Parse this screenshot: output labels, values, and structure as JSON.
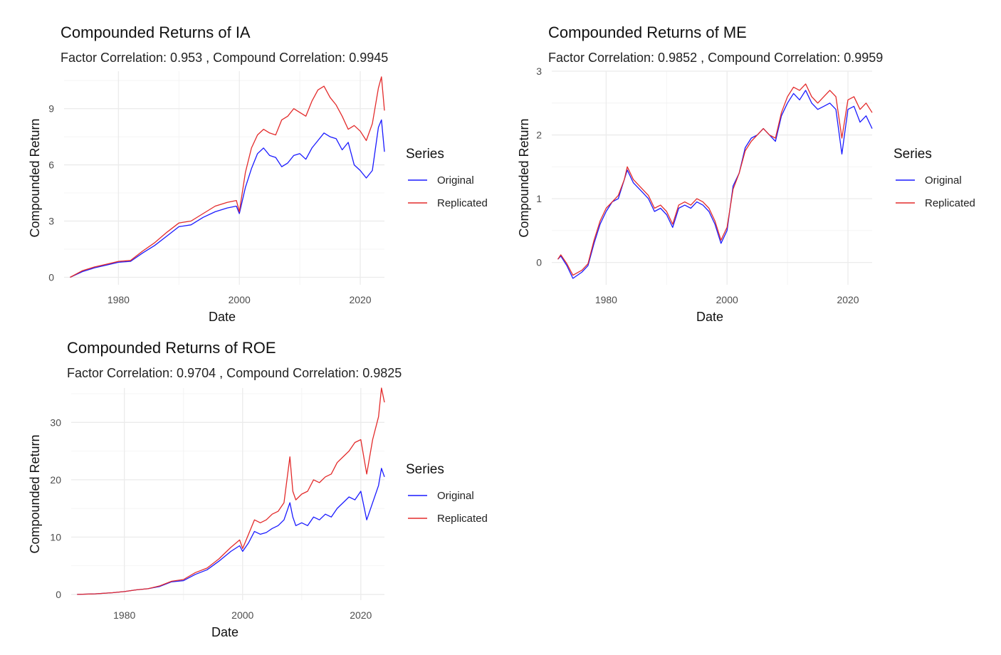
{
  "chart_data": [
    {
      "type": "line",
      "title": "Compounded Returns of IA",
      "subtitle": "Factor Correlation: 0.953 , Compound Correlation: 0.9945",
      "xlabel": "Date",
      "ylabel": "Compounded Return",
      "xlim": [
        1971,
        2024
      ],
      "ylim": [
        -0.4,
        11
      ],
      "xticks": [
        1980,
        2000,
        2020
      ],
      "yticks": [
        0,
        3,
        6,
        9
      ],
      "legend_title": "Series",
      "legend_position": "right",
      "grid": true,
      "series": [
        {
          "name": "Original",
          "color": "#1a1aff",
          "x": [
            1972,
            1974,
            1976,
            1978,
            1980,
            1982,
            1984,
            1986,
            1988,
            1990,
            1992,
            1994,
            1996,
            1998,
            1999.5,
            2000,
            2001,
            2002,
            2003,
            2004,
            2005,
            2006,
            2007,
            2008,
            2009,
            2010,
            2011,
            2012,
            2013,
            2014,
            2015,
            2016,
            2017,
            2018,
            2019,
            2020,
            2021,
            2022,
            2023,
            2023.5,
            2024
          ],
          "y": [
            0,
            0.3,
            0.5,
            0.65,
            0.8,
            0.85,
            1.3,
            1.7,
            2.2,
            2.7,
            2.8,
            3.2,
            3.5,
            3.7,
            3.8,
            3.4,
            4.8,
            5.8,
            6.6,
            6.9,
            6.5,
            6.4,
            5.9,
            6.1,
            6.5,
            6.6,
            6.3,
            6.9,
            7.3,
            7.7,
            7.5,
            7.4,
            6.8,
            7.2,
            6.0,
            5.7,
            5.3,
            5.7,
            8.0,
            8.4,
            6.7
          ]
        },
        {
          "name": "Replicated",
          "color": "#e32b2b",
          "x": [
            1972,
            1974,
            1976,
            1978,
            1980,
            1982,
            1984,
            1986,
            1988,
            1990,
            1992,
            1994,
            1996,
            1998,
            1999.5,
            2000,
            2001,
            2002,
            2003,
            2004,
            2005,
            2006,
            2007,
            2008,
            2009,
            2010,
            2011,
            2012,
            2013,
            2014,
            2015,
            2016,
            2017,
            2018,
            2019,
            2020,
            2021,
            2022,
            2023,
            2023.5,
            2024
          ],
          "y": [
            0,
            0.35,
            0.55,
            0.7,
            0.85,
            0.9,
            1.4,
            1.85,
            2.4,
            2.9,
            3.0,
            3.4,
            3.8,
            4.0,
            4.1,
            3.5,
            5.6,
            6.9,
            7.6,
            7.9,
            7.7,
            7.6,
            8.4,
            8.6,
            9.0,
            8.8,
            8.6,
            9.4,
            10.0,
            10.2,
            9.6,
            9.2,
            8.6,
            7.9,
            8.1,
            7.8,
            7.3,
            8.2,
            10.1,
            10.7,
            8.9
          ]
        }
      ]
    },
    {
      "type": "line",
      "title": "Compounded Returns of ME",
      "subtitle": "Factor Correlation: 0.9852 , Compound Correlation: 0.9959",
      "xlabel": "Date",
      "ylabel": "Compounded Return",
      "xlim": [
        1971,
        2024
      ],
      "ylim": [
        -0.35,
        3
      ],
      "xticks": [
        1980,
        2000,
        2020
      ],
      "yticks": [
        0,
        1,
        2,
        3
      ],
      "legend_title": "Series",
      "legend_position": "right",
      "grid": true,
      "series": [
        {
          "name": "Original",
          "color": "#1a1aff",
          "x": [
            1972,
            1972.5,
            1973.5,
            1974.5,
            1976,
            1977,
            1978,
            1979,
            1980,
            1981,
            1982,
            1983,
            1983.5,
            1984.5,
            1986,
            1987,
            1988,
            1989,
            1990,
            1991,
            1992,
            1993,
            1994,
            1995,
            1996,
            1997,
            1998,
            1999,
            2000,
            2001,
            2002,
            2003,
            2004,
            2005,
            2006,
            2007,
            2008,
            2009,
            2010,
            2011,
            2012,
            2013,
            2014,
            2015,
            2016,
            2017,
            2018,
            2019,
            2020,
            2021,
            2022,
            2023,
            2024
          ],
          "y": [
            0.05,
            0.1,
            -0.05,
            -0.25,
            -0.15,
            -0.05,
            0.3,
            0.6,
            0.8,
            0.95,
            1.0,
            1.3,
            1.45,
            1.25,
            1.1,
            1.0,
            0.8,
            0.85,
            0.75,
            0.55,
            0.85,
            0.9,
            0.85,
            0.95,
            0.9,
            0.8,
            0.6,
            0.3,
            0.5,
            1.2,
            1.4,
            1.8,
            1.95,
            2.0,
            2.1,
            2.0,
            1.9,
            2.3,
            2.5,
            2.65,
            2.55,
            2.7,
            2.5,
            2.4,
            2.45,
            2.5,
            2.4,
            1.7,
            2.4,
            2.45,
            2.2,
            2.3,
            2.1
          ]
        },
        {
          "name": "Replicated",
          "color": "#e32b2b",
          "x": [
            1972,
            1972.5,
            1973.5,
            1974.5,
            1976,
            1977,
            1978,
            1979,
            1980,
            1981,
            1982,
            1983,
            1983.5,
            1984.5,
            1986,
            1987,
            1988,
            1989,
            1990,
            1991,
            1992,
            1993,
            1994,
            1995,
            1996,
            1997,
            1998,
            1999,
            2000,
            2001,
            2002,
            2003,
            2004,
            2005,
            2006,
            2007,
            2008,
            2009,
            2010,
            2011,
            2012,
            2013,
            2014,
            2015,
            2016,
            2017,
            2018,
            2019,
            2020,
            2021,
            2022,
            2023,
            2024
          ],
          "y": [
            0.05,
            0.12,
            -0.02,
            -0.2,
            -0.12,
            -0.02,
            0.35,
            0.65,
            0.85,
            0.95,
            1.05,
            1.3,
            1.5,
            1.3,
            1.15,
            1.05,
            0.85,
            0.9,
            0.8,
            0.6,
            0.9,
            0.95,
            0.9,
            1.0,
            0.95,
            0.85,
            0.65,
            0.35,
            0.55,
            1.15,
            1.4,
            1.75,
            1.9,
            2.0,
            2.1,
            2.0,
            1.95,
            2.35,
            2.6,
            2.75,
            2.7,
            2.8,
            2.6,
            2.5,
            2.6,
            2.7,
            2.6,
            1.95,
            2.55,
            2.6,
            2.4,
            2.5,
            2.35
          ]
        }
      ]
    },
    {
      "type": "line",
      "title": "Compounded Returns of ROE",
      "subtitle": "Factor Correlation: 0.9704 , Compound Correlation: 0.9825",
      "xlabel": "Date",
      "ylabel": "Compounded Return",
      "xlim": [
        1971,
        2024
      ],
      "ylim": [
        -1,
        36
      ],
      "xticks": [
        1980,
        2000,
        2020
      ],
      "yticks": [
        0,
        10,
        20,
        30
      ],
      "legend_title": "Series",
      "legend_position": "right",
      "grid": true,
      "series": [
        {
          "name": "Original",
          "color": "#1a1aff",
          "x": [
            1972,
            1975,
            1978,
            1980,
            1982,
            1984,
            1986,
            1988,
            1990,
            1992,
            1994,
            1996,
            1998,
            1999.5,
            2000,
            2001,
            2002,
            2003,
            2004,
            2005,
            2006,
            2007,
            2008,
            2008.5,
            2009,
            2010,
            2011,
            2012,
            2013,
            2014,
            2015,
            2016,
            2017,
            2018,
            2019,
            2020,
            2021,
            2022,
            2023,
            2023.5,
            2024
          ],
          "y": [
            0,
            0.1,
            0.3,
            0.5,
            0.8,
            1.0,
            1.4,
            2.2,
            2.4,
            3.5,
            4.3,
            5.8,
            7.5,
            8.5,
            7.5,
            9.0,
            11.0,
            10.5,
            10.8,
            11.5,
            12.0,
            13.0,
            16.0,
            13.5,
            12.0,
            12.5,
            12.0,
            13.5,
            13.0,
            14.0,
            13.5,
            15.0,
            16.0,
            17.0,
            16.5,
            18.0,
            13.0,
            16.0,
            19.0,
            22.0,
            20.5
          ]
        },
        {
          "name": "Replicated",
          "color": "#e32b2b",
          "x": [
            1972,
            1975,
            1978,
            1980,
            1982,
            1984,
            1986,
            1988,
            1990,
            1992,
            1994,
            1996,
            1998,
            1999.5,
            2000,
            2001,
            2002,
            2003,
            2004,
            2005,
            2006,
            2007,
            2008,
            2008.5,
            2009,
            2010,
            2011,
            2012,
            2013,
            2014,
            2015,
            2016,
            2017,
            2018,
            2019,
            2020,
            2021,
            2022,
            2023,
            2023.5,
            2024
          ],
          "y": [
            0,
            0.1,
            0.3,
            0.5,
            0.8,
            1.0,
            1.5,
            2.3,
            2.6,
            3.8,
            4.6,
            6.2,
            8.2,
            9.5,
            8.0,
            10.5,
            13.0,
            12.5,
            13.0,
            14.0,
            14.5,
            16.0,
            24.0,
            18.0,
            16.5,
            17.5,
            18.0,
            20.0,
            19.5,
            20.5,
            21.0,
            23.0,
            24.0,
            25.0,
            26.5,
            27.0,
            21.0,
            27.0,
            31.0,
            36.0,
            33.5
          ]
        }
      ]
    }
  ]
}
